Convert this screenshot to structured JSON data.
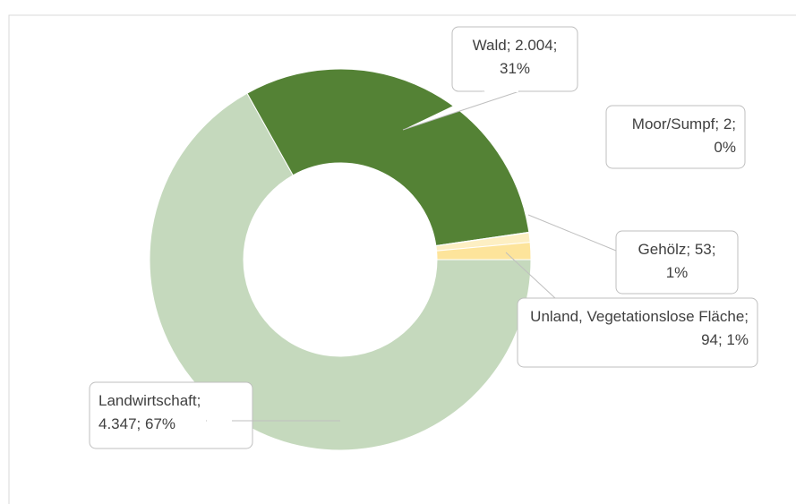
{
  "chart_data": {
    "type": "donut",
    "labels": [
      "Landwirtschaft; 4.347; 67%",
      "Wald; 2.004; 31%",
      "Moor/Sumpf; 2; 0%",
      "Gehölz; 53; 1%",
      "Unland, Vegetationslose Fläche; 94; 1%"
    ],
    "values": [
      4347,
      2004,
      2,
      53,
      94
    ],
    "colors": [
      "#c5d9bd",
      "#548235",
      "#d9e8cf",
      "#fdefc3",
      "#fde49b"
    ]
  }
}
